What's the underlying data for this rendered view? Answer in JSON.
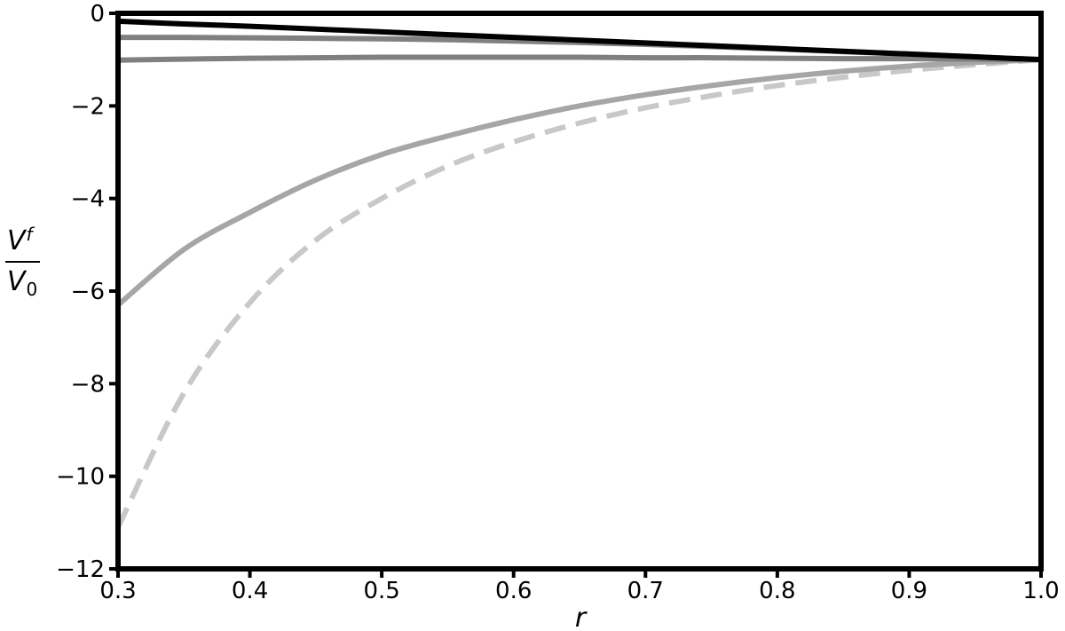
{
  "chart_data": {
    "type": "line",
    "title": "",
    "xlabel": "r",
    "ylabel": {
      "numerator_main": "V",
      "numerator_sub": "f",
      "denominator_main": "V",
      "denominator_sub": "0"
    },
    "xlim": [
      0.3,
      1.0
    ],
    "ylim": [
      -12,
      0
    ],
    "xticks": [
      0.3,
      0.4,
      0.5,
      0.6,
      0.7,
      0.8,
      0.9,
      1.0
    ],
    "xtick_labels": [
      "0.3",
      "0.4",
      "0.5",
      "0.6",
      "0.7",
      "0.8",
      "0.9",
      "1.0"
    ],
    "yticks": [
      0,
      -2,
      -4,
      -6,
      -8,
      -10,
      -12
    ],
    "ytick_labels": [
      "0",
      "−2",
      "−4",
      "−6",
      "−8",
      "−10",
      "−12"
    ],
    "grid": false,
    "legend": "none",
    "x": [
      0.3,
      0.35,
      0.4,
      0.45,
      0.5,
      0.55,
      0.6,
      0.65,
      0.7,
      0.75,
      0.8,
      0.85,
      0.9,
      0.95,
      1.0
    ],
    "series": [
      {
        "style": "solid",
        "color": "#000000",
        "values": [
          -0.17,
          -0.23,
          -0.28,
          -0.34,
          -0.4,
          -0.46,
          -0.52,
          -0.58,
          -0.64,
          -0.7,
          -0.76,
          -0.82,
          -0.88,
          -0.94,
          -1.0
        ]
      },
      {
        "style": "solid",
        "color": "#808080",
        "values": [
          -0.52,
          -0.52,
          -0.53,
          -0.54,
          -0.55,
          -0.57,
          -0.6,
          -0.63,
          -0.67,
          -0.72,
          -0.77,
          -0.83,
          -0.88,
          -0.94,
          -1.0
        ]
      },
      {
        "style": "solid",
        "color": "#808080",
        "values": [
          -1.01,
          -0.99,
          -0.97,
          -0.96,
          -0.95,
          -0.95,
          -0.95,
          -0.95,
          -0.96,
          -0.96,
          -0.97,
          -0.98,
          -0.98,
          -0.99,
          -1.0
        ]
      },
      {
        "style": "solid",
        "color": "#a6a6a6",
        "values": [
          -6.3,
          -5.1,
          -4.3,
          -3.6,
          -3.05,
          -2.65,
          -2.3,
          -2.0,
          -1.76,
          -1.56,
          -1.39,
          -1.25,
          -1.14,
          -1.06,
          -1.0
        ]
      },
      {
        "style": "dashed",
        "color": "#c8c8c8",
        "values": [
          -11.1,
          -8.2,
          -6.25,
          -4.9,
          -4.0,
          -3.3,
          -2.78,
          -2.37,
          -2.04,
          -1.78,
          -1.56,
          -1.38,
          -1.23,
          -1.11,
          -1.0
        ]
      }
    ]
  }
}
